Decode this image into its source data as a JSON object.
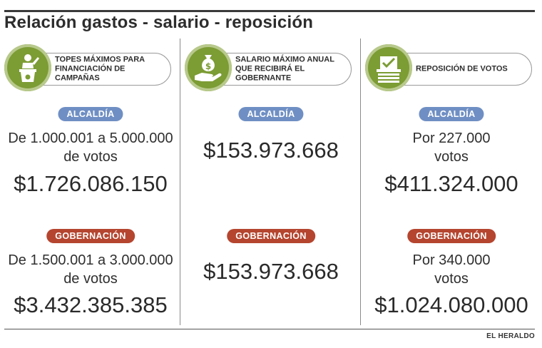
{
  "title": "Relación gastos - salario - reposición",
  "source": "EL HERALDO",
  "colors": {
    "accent_green": "#7c9c34",
    "badge_alcaldia": "#6f8fc4",
    "badge_gobernacion": "#b5452f"
  },
  "columns": [
    {
      "icon": "podium-speaker-icon",
      "header": "Topes máximos para financiación de campañas",
      "alcaldia": {
        "label": "ALCALDÍA",
        "desc": "De 1.000.001 a 5.000.000 de votos",
        "amount": "$1.726.086.150"
      },
      "gobernacion": {
        "label": "GOBERNACIÓN",
        "desc": "De 1.500.001 a 3.000.000 de votos",
        "amount": "$3.432.385.385"
      }
    },
    {
      "icon": "money-bag-hand-icon",
      "header": "Salario máximo anual que recibirá el gobernante",
      "alcaldia": {
        "label": "ALCALDÍA",
        "desc": "",
        "amount": "$153.973.668"
      },
      "gobernacion": {
        "label": "GOBERNACIÓN",
        "desc": "",
        "amount": "$153.973.668"
      }
    },
    {
      "icon": "ballot-box-icon",
      "header": "Reposición de votos",
      "alcaldia": {
        "label": "ALCALDÍA",
        "desc": "Por 227.000 votos",
        "amount": "$411.324.000"
      },
      "gobernacion": {
        "label": "GOBERNACIÓN",
        "desc": "Por 340.000 votos",
        "amount": "$1.024.080.000"
      }
    }
  ]
}
